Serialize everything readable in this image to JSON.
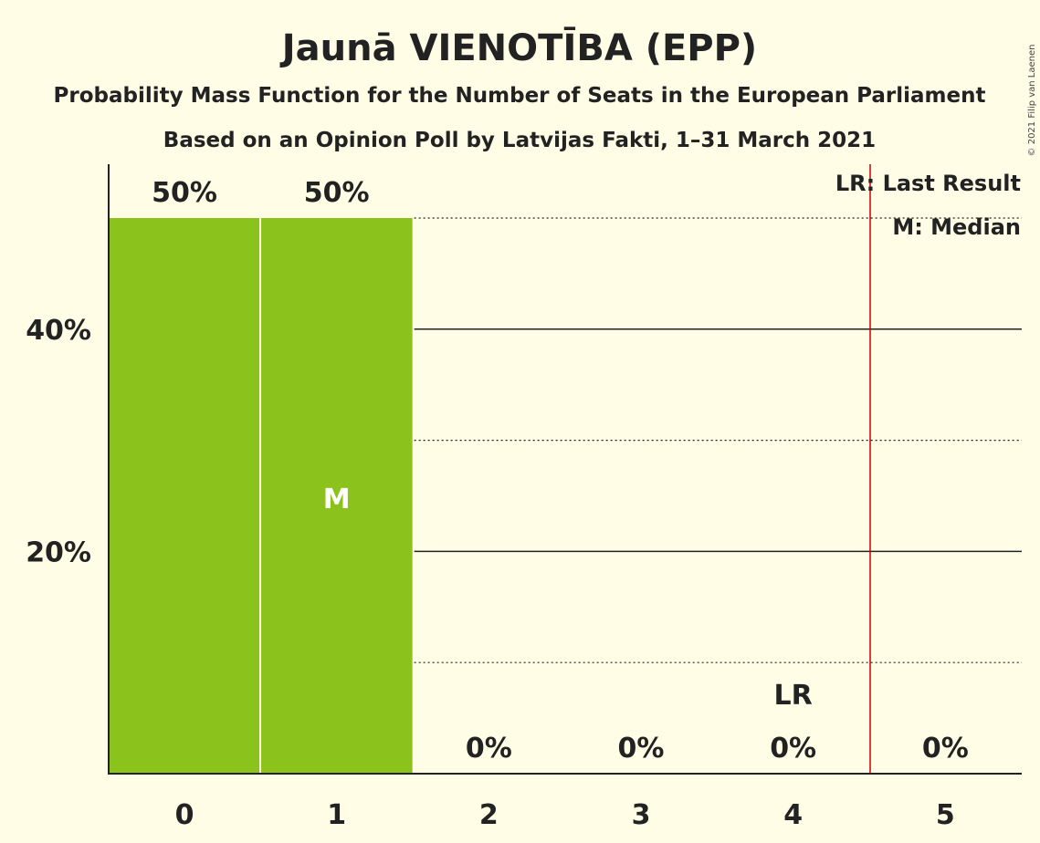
{
  "chart_data": {
    "type": "bar",
    "title": "Jaunā VIENOTĪBA (EPP)",
    "subtitle": "Probability Mass Function for the Number of Seats in the European Parliament",
    "subtitle2": "Based on an Opinion Poll by Latvijas Fakti, 1–31 March 2021",
    "copyright": "© 2021 Filip van Laenen",
    "categories": [
      "0",
      "1",
      "2",
      "3",
      "4",
      "5"
    ],
    "values": [
      50,
      50,
      0,
      0,
      0,
      0
    ],
    "value_labels": [
      "50%",
      "50%",
      "0%",
      "0%",
      "0%",
      "0%"
    ],
    "ylim": [
      0,
      55
    ],
    "y_ticks": [
      20,
      40
    ],
    "y_tick_labels": [
      "20%",
      "40%"
    ],
    "minor_gridlines": [
      10,
      30,
      50
    ],
    "bar_color": "#8bc21c",
    "last_result_line_color": "#cc0000",
    "median_category": "1",
    "median_marker": "M",
    "last_result_category": "4",
    "last_result_marker": "LR",
    "legend": {
      "position": "top-right",
      "lines": [
        "LR: Last Result",
        "M: Median"
      ]
    }
  }
}
